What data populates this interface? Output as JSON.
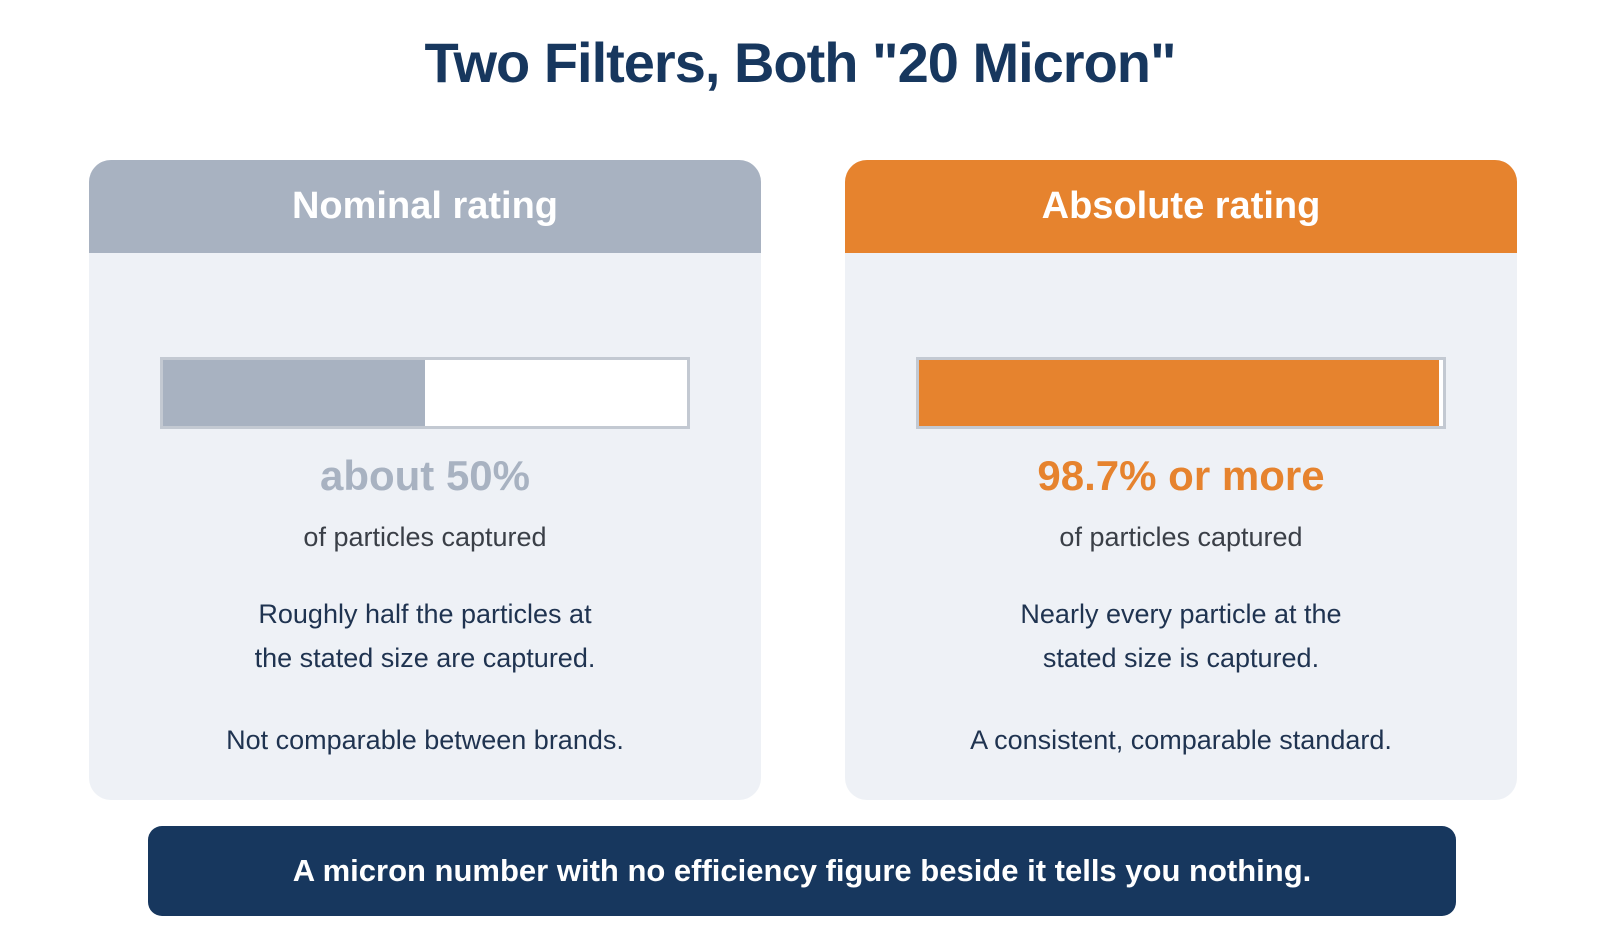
{
  "title": "Two Filters, Both \"20 Micron\"",
  "cards": [
    {
      "header": "Nominal rating",
      "percent_label": "about 50%",
      "fill_fraction": 0.5,
      "sub_label": "of particles captured",
      "desc_line1": "Roughly half the particles at",
      "desc_line2": "the stated size are captured.",
      "note": "Not comparable between brands.",
      "color": "#a8b2c1"
    },
    {
      "header": "Absolute rating",
      "percent_label": "98.7% or more",
      "fill_fraction": 0.987,
      "sub_label": "of particles captured",
      "desc_line1": "Nearly every particle at the",
      "desc_line2": "stated size is captured.",
      "note": "A consistent, comparable standard.",
      "color": "#e6832e"
    }
  ],
  "banner": "A micron number with no efficiency figure beside it tells you nothing.",
  "colors": {
    "title": "#17375e",
    "card_background": "#eef1f6",
    "banner_background": "#17375e"
  }
}
